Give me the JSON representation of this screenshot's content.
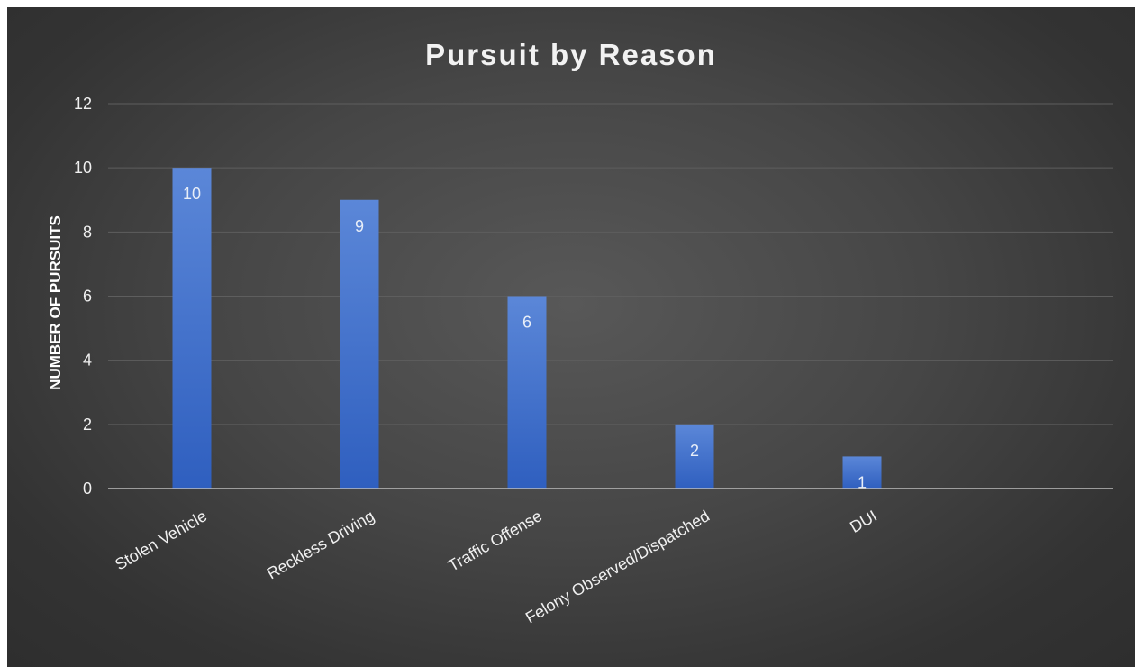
{
  "chart_data": {
    "type": "bar",
    "title": "Pursuit by Reason",
    "xlabel": "",
    "ylabel": "NUMBER OF PURSUITS",
    "categories": [
      "Stolen Vehicle",
      "Reckless Driving",
      "Traffic Offense",
      "Felony Observed/Dispatched",
      "DUI",
      ""
    ],
    "values": [
      10,
      9,
      6,
      2,
      1,
      null
    ],
    "data_labels": [
      "10",
      "9",
      "6",
      "2",
      "1",
      ""
    ],
    "ylim": [
      0,
      12
    ],
    "yticks": [
      0,
      2,
      4,
      6,
      8,
      10,
      12
    ],
    "grid": true,
    "legend": "none",
    "colors": {
      "bar_top": "#5b87d8",
      "bar_bottom": "#2f5fbf",
      "grid": "#5e5e5e",
      "axis": "#bdbdbd",
      "text": "#f0f0f0"
    }
  }
}
